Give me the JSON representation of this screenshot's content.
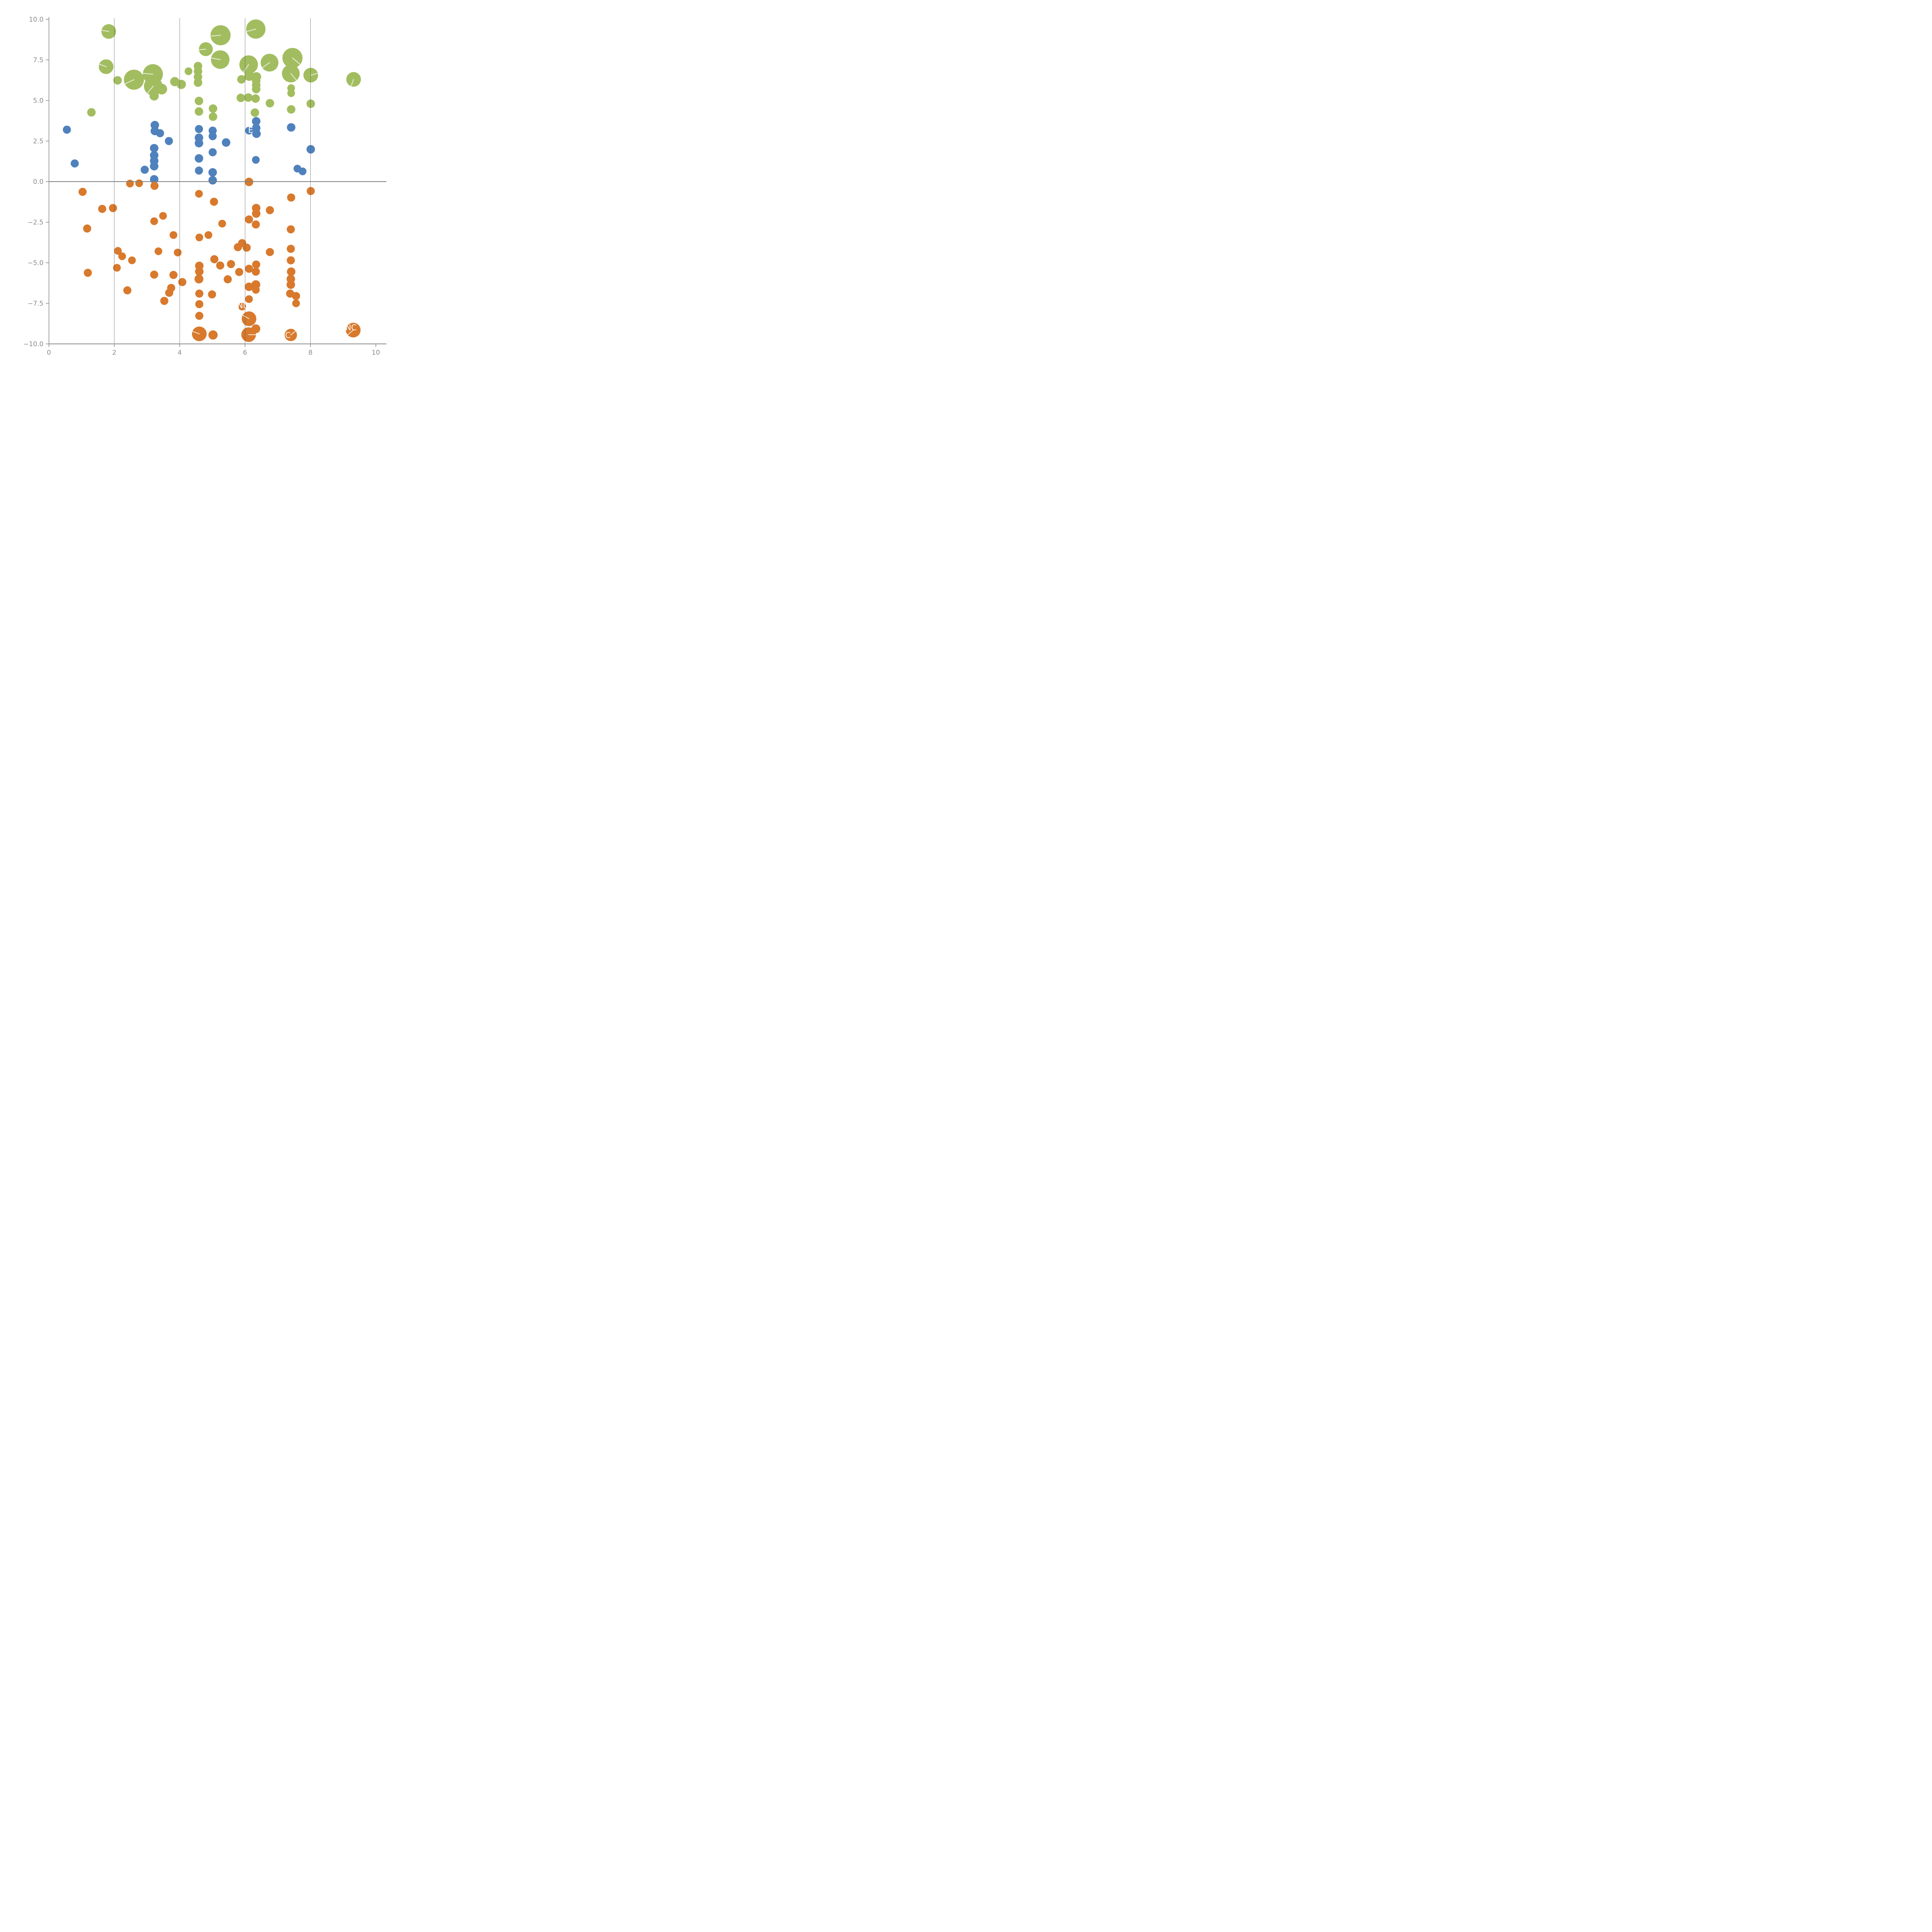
{
  "chart_data": {
    "type": "scatter",
    "title": "",
    "xlabel": "",
    "ylabel": "",
    "xlim": [
      0,
      10
    ],
    "ylim": [
      -10,
      10
    ],
    "x_ticks": [
      0,
      2,
      4,
      6,
      8,
      10
    ],
    "x_tick_labels": [
      "0",
      "2",
      "4",
      "6",
      "8",
      "10"
    ],
    "y_ticks": [
      10,
      7.5,
      5,
      2.5,
      0,
      -2.5,
      -5,
      -7.5,
      -10
    ],
    "y_tick_labels": [
      "10.0",
      "7.5",
      "5.0",
      "2.5",
      "0.0",
      "−2.5",
      "−5.0",
      "−7.5",
      "−10.0"
    ],
    "grid_x": [
      2,
      4,
      6,
      8
    ],
    "zero_line_y": 0,
    "grid_on": true,
    "legend": "none",
    "colors": {
      "green": "#a2bd5f",
      "blue": "#4f81bd",
      "orange": "#d8792c",
      "axis": "#8c8c8c",
      "grid": "#555555",
      "zero_line": "#808080",
      "tick_label": "#8c8c8c",
      "annotation": "#ffffff",
      "leader": "#f0f2ea"
    },
    "series": [
      {
        "name": "positive-high-green",
        "color": "#a2bd5f",
        "points": [
          [
            1.83,
            9.25,
            19,
            170
          ],
          [
            1.75,
            7.08,
            19,
            160
          ],
          [
            2.1,
            6.24,
            11,
            null
          ],
          [
            2.6,
            6.28,
            26,
            205
          ],
          [
            3.18,
            6.62,
            26,
            175
          ],
          [
            3.19,
            5.88,
            24,
            230
          ],
          [
            3.45,
            5.7,
            14,
            null
          ],
          [
            3.22,
            5.28,
            12,
            null
          ],
          [
            3.85,
            6.16,
            12,
            null
          ],
          [
            4.05,
            5.99,
            12,
            null
          ],
          [
            4.27,
            6.8,
            10,
            null
          ],
          [
            4.56,
            7.12,
            11,
            null
          ],
          [
            4.56,
            6.8,
            11,
            null
          ],
          [
            4.56,
            6.45,
            11,
            null
          ],
          [
            4.56,
            6.1,
            11,
            null
          ],
          [
            4.8,
            8.16,
            18,
            185
          ],
          [
            5.25,
            9.02,
            26,
            185
          ],
          [
            6.33,
            9.4,
            25,
            195
          ],
          [
            5.24,
            7.52,
            24,
            170
          ],
          [
            6.11,
            7.21,
            24,
            235
          ],
          [
            6.75,
            7.33,
            23,
            215
          ],
          [
            7.45,
            7.62,
            26,
            320
          ],
          [
            7.4,
            6.66,
            23,
            310
          ],
          [
            8.01,
            6.56,
            19,
            15
          ],
          [
            9.32,
            6.3,
            19,
            250
          ],
          [
            5.89,
            6.3,
            11,
            null
          ],
          [
            6.13,
            6.52,
            13,
            null
          ],
          [
            6.35,
            6.46,
            12,
            null
          ],
          [
            6.34,
            6.2,
            11,
            null
          ],
          [
            6.34,
            5.95,
            11,
            null
          ],
          [
            6.34,
            5.7,
            11,
            null
          ],
          [
            7.41,
            5.76,
            10,
            null
          ],
          [
            7.41,
            5.45,
            10,
            null
          ],
          [
            5.87,
            5.16,
            11,
            null
          ],
          [
            6.1,
            5.18,
            11,
            null
          ],
          [
            6.32,
            5.12,
            11,
            null
          ],
          [
            1.3,
            4.27,
            11,
            null
          ],
          [
            4.59,
            4.97,
            11,
            null
          ],
          [
            4.59,
            4.32,
            11,
            null
          ],
          [
            5.02,
            4.5,
            11,
            null
          ],
          [
            5.02,
            4.0,
            11,
            null
          ],
          [
            6.76,
            4.83,
            11,
            null
          ],
          [
            6.3,
            4.25,
            11,
            null
          ],
          [
            7.41,
            4.45,
            11,
            null
          ],
          [
            8.01,
            4.8,
            11,
            null
          ]
        ]
      },
      {
        "name": "positive-low-blue",
        "color": "#4f81bd",
        "points": [
          [
            0.55,
            3.2,
            10.5,
            null
          ],
          [
            0.79,
            1.12,
            10.5,
            null
          ],
          [
            3.24,
            3.48,
            11,
            null
          ],
          [
            3.24,
            3.12,
            11,
            null
          ],
          [
            3.4,
            2.98,
            10.5,
            null
          ],
          [
            3.67,
            2.5,
            10.5,
            null
          ],
          [
            3.22,
            2.06,
            11,
            null
          ],
          [
            3.22,
            1.62,
            11,
            null
          ],
          [
            3.22,
            1.28,
            11,
            null
          ],
          [
            3.22,
            0.95,
            11,
            null
          ],
          [
            2.93,
            0.73,
            10.5,
            null
          ],
          [
            3.22,
            0.14,
            11,
            null
          ],
          [
            4.59,
            3.24,
            10.5,
            null
          ],
          [
            4.59,
            2.7,
            11,
            null
          ],
          [
            4.59,
            2.37,
            11,
            null
          ],
          [
            4.59,
            1.43,
            11,
            null
          ],
          [
            4.59,
            0.68,
            10.5,
            null
          ],
          [
            5.01,
            3.14,
            10.5,
            null
          ],
          [
            5.01,
            2.8,
            10.5,
            null
          ],
          [
            5.01,
            1.81,
            10.5,
            null
          ],
          [
            5.01,
            0.57,
            11,
            null
          ],
          [
            5.01,
            0.08,
            11,
            null
          ],
          [
            5.42,
            2.41,
            11,
            null
          ],
          [
            6.12,
            3.14,
            10,
            null
          ],
          [
            6.34,
            3.72,
            11,
            null
          ],
          [
            6.34,
            3.3,
            11,
            null
          ],
          [
            6.35,
            2.95,
            11,
            null
          ],
          [
            6.33,
            1.34,
            10,
            null
          ],
          [
            7.41,
            3.34,
            11,
            null
          ],
          [
            8.01,
            1.99,
            11,
            null
          ],
          [
            7.6,
            0.8,
            10,
            null
          ],
          [
            7.76,
            0.63,
            10,
            null
          ]
        ]
      },
      {
        "name": "negative-orange",
        "color": "#d8792c",
        "points": [
          [
            1.03,
            -0.63,
            10.5,
            null
          ],
          [
            2.48,
            -0.12,
            10,
            null
          ],
          [
            2.76,
            -0.1,
            10,
            null
          ],
          [
            3.23,
            -0.26,
            10.5,
            null
          ],
          [
            6.12,
            -0.02,
            11,
            null
          ],
          [
            1.63,
            -1.68,
            10.5,
            null
          ],
          [
            1.96,
            -1.63,
            10.5,
            null
          ],
          [
            1.17,
            -2.89,
            10.5,
            null
          ],
          [
            4.59,
            -0.75,
            10,
            null
          ],
          [
            5.05,
            -1.24,
            10.5,
            null
          ],
          [
            7.41,
            -0.98,
            10.5,
            null
          ],
          [
            8.01,
            -0.58,
            10.5,
            null
          ],
          [
            3.49,
            -2.11,
            10,
            null
          ],
          [
            3.22,
            -2.44,
            10,
            null
          ],
          [
            3.81,
            -3.29,
            10,
            null
          ],
          [
            4.6,
            -3.44,
            10,
            null
          ],
          [
            4.88,
            -3.29,
            10,
            null
          ],
          [
            5.3,
            -2.59,
            10,
            null
          ],
          [
            6.34,
            -1.63,
            11,
            null
          ],
          [
            6.34,
            -1.97,
            11,
            null
          ],
          [
            6.76,
            -1.76,
            10.5,
            null
          ],
          [
            6.12,
            -2.33,
            10.5,
            null
          ],
          [
            6.33,
            -2.64,
            10.5,
            null
          ],
          [
            7.4,
            -2.94,
            10.5,
            null
          ],
          [
            2.11,
            -4.27,
            10,
            null
          ],
          [
            2.24,
            -4.6,
            10,
            null
          ],
          [
            2.54,
            -4.85,
            10,
            null
          ],
          [
            3.35,
            -4.29,
            10,
            null
          ],
          [
            3.94,
            -4.37,
            10,
            null
          ],
          [
            5.91,
            -3.79,
            10.5,
            null
          ],
          [
            5.78,
            -4.04,
            10.5,
            null
          ],
          [
            6.05,
            -4.07,
            10.5,
            null
          ],
          [
            6.76,
            -4.34,
            10.5,
            null
          ],
          [
            5.06,
            -4.78,
            10.5,
            null
          ],
          [
            5.24,
            -5.17,
            10.5,
            null
          ],
          [
            5.57,
            -5.08,
            10.5,
            null
          ],
          [
            5.82,
            -5.57,
            10.5,
            null
          ],
          [
            5.47,
            -6.02,
            10.5,
            null
          ],
          [
            1.19,
            -5.62,
            10.5,
            null
          ],
          [
            2.08,
            -5.31,
            10,
            null
          ],
          [
            2.4,
            -6.7,
            10.5,
            null
          ],
          [
            3.22,
            -5.73,
            10.5,
            null
          ],
          [
            3.81,
            -5.75,
            10.5,
            null
          ],
          [
            4.08,
            -6.19,
            10.5,
            null
          ],
          [
            3.74,
            -6.55,
            10.5,
            null
          ],
          [
            3.68,
            -6.85,
            10.5,
            null
          ],
          [
            3.53,
            -7.35,
            10.5,
            null
          ],
          [
            4.6,
            -5.19,
            11,
            null
          ],
          [
            4.6,
            -5.54,
            11,
            null
          ],
          [
            4.59,
            -6.0,
            11.5,
            null
          ],
          [
            4.6,
            -6.9,
            10.5,
            null
          ],
          [
            4.6,
            -7.55,
            10.5,
            null
          ],
          [
            4.6,
            -8.27,
            10.5,
            null
          ],
          [
            4.99,
            -6.95,
            10.5,
            null
          ],
          [
            6.12,
            -5.37,
            10.5,
            null
          ],
          [
            6.34,
            -5.11,
            10.5,
            null
          ],
          [
            6.33,
            -5.55,
            10.5,
            null
          ],
          [
            6.12,
            -6.48,
            11,
            null
          ],
          [
            6.33,
            -6.35,
            11.5,
            null
          ],
          [
            6.33,
            -6.67,
            10,
            null
          ],
          [
            7.4,
            -4.14,
            10.5,
            null
          ],
          [
            7.4,
            -4.85,
            10.5,
            null
          ],
          [
            7.41,
            -5.55,
            11,
            null
          ],
          [
            7.4,
            -6.0,
            11,
            null
          ],
          [
            7.4,
            -6.35,
            11,
            null
          ],
          [
            7.38,
            -6.9,
            10.5,
            null
          ],
          [
            7.56,
            -7.05,
            10.5,
            null
          ],
          [
            7.56,
            -7.5,
            10,
            null
          ],
          [
            6.12,
            -7.24,
            10,
            null
          ],
          [
            5.91,
            -7.7,
            10,
            null
          ],
          [
            6.12,
            -8.45,
            19,
            150
          ],
          [
            6.33,
            -9.07,
            11.5,
            null
          ],
          [
            6.11,
            -9.43,
            19,
            0
          ],
          [
            4.6,
            -9.38,
            19,
            160
          ],
          [
            5.02,
            -9.45,
            12,
            null
          ],
          [
            7.4,
            -9.45,
            16,
            40
          ],
          [
            9.31,
            -9.15,
            19,
            220
          ]
        ]
      }
    ],
    "annotations": [
      {
        "text": "E",
        "x": 6.17,
        "y": 3.18
      },
      {
        "text": "ND",
        "x": 5.94,
        "y": -7.63
      },
      {
        "text": "C",
        "x": 7.31,
        "y": -9.47
      },
      {
        "text": "NC",
        "x": 9.24,
        "y": -8.99
      }
    ]
  }
}
